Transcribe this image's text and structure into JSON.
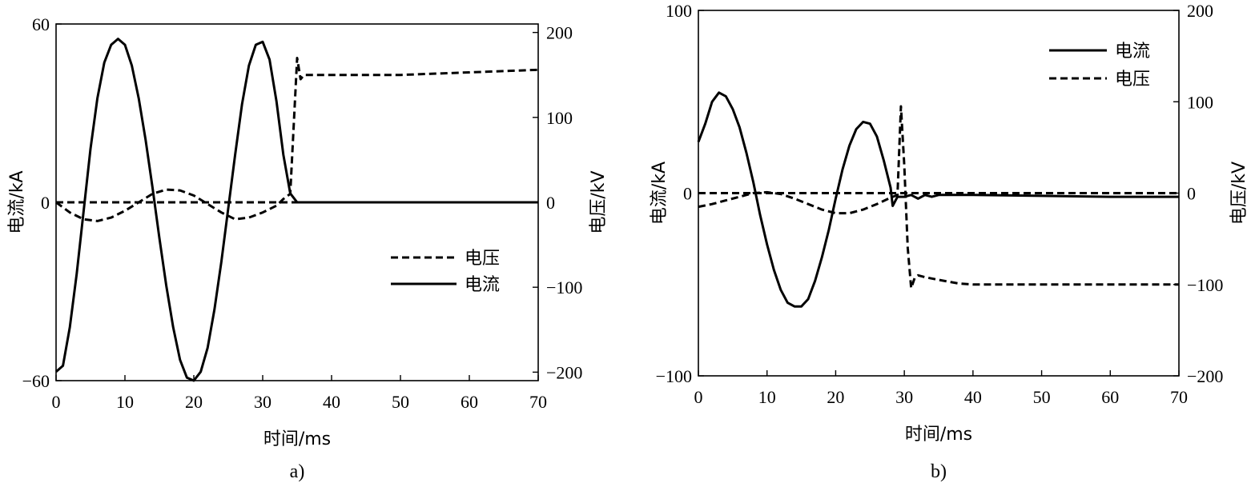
{
  "chart_data": [
    {
      "type": "line",
      "caption": "a)",
      "xlabel": "时间/ms",
      "ylabel_left": "电流/kA",
      "ylabel_right": "电压/kV",
      "xlim": [
        0,
        70
      ],
      "ylim_left": [
        -60,
        60
      ],
      "ylim_right": [
        -210,
        210
      ],
      "xticks": [
        0,
        10,
        20,
        30,
        40,
        50,
        60,
        70
      ],
      "yticks_left": [
        -60,
        0,
        60
      ],
      "yticks_right": [
        -200,
        -100,
        0,
        100,
        200
      ],
      "legend": {
        "placement": "center-right",
        "entries": [
          "电压",
          "电流"
        ]
      },
      "series": [
        {
          "name": "电流",
          "style": "solid",
          "axis": "left",
          "points": [
            [
              0,
              -57
            ],
            [
              1,
              -55
            ],
            [
              2,
              -42
            ],
            [
              3,
              -24
            ],
            [
              4,
              -3
            ],
            [
              5,
              18
            ],
            [
              6,
              35
            ],
            [
              7,
              47
            ],
            [
              8,
              53
            ],
            [
              9,
              55
            ],
            [
              10,
              53
            ],
            [
              11,
              46
            ],
            [
              12,
              35
            ],
            [
              13,
              21
            ],
            [
              14,
              5
            ],
            [
              15,
              -12
            ],
            [
              16,
              -28
            ],
            [
              17,
              -42
            ],
            [
              18,
              -53
            ],
            [
              19,
              -59
            ],
            [
              20,
              -60
            ],
            [
              21,
              -57
            ],
            [
              22,
              -49
            ],
            [
              23,
              -36
            ],
            [
              24,
              -20
            ],
            [
              25,
              -2
            ],
            [
              26,
              16
            ],
            [
              27,
              33
            ],
            [
              28,
              46
            ],
            [
              29,
              53
            ],
            [
              30,
              54
            ],
            [
              31,
              48
            ],
            [
              32,
              34
            ],
            [
              33,
              16
            ],
            [
              34,
              3
            ],
            [
              35,
              0
            ],
            [
              40,
              0
            ],
            [
              50,
              0
            ],
            [
              60,
              0
            ],
            [
              70,
              0
            ]
          ]
        },
        {
          "name": "电压",
          "style": "dashed",
          "axis": "right",
          "points": [
            [
              0,
              0
            ],
            [
              2,
              -12
            ],
            [
              4,
              -20
            ],
            [
              6,
              -22
            ],
            [
              8,
              -18
            ],
            [
              10,
              -10
            ],
            [
              12,
              0
            ],
            [
              14,
              10
            ],
            [
              16,
              15
            ],
            [
              18,
              14
            ],
            [
              20,
              8
            ],
            [
              22,
              -2
            ],
            [
              24,
              -12
            ],
            [
              26,
              -20
            ],
            [
              28,
              -18
            ],
            [
              30,
              -12
            ],
            [
              32,
              -4
            ],
            [
              33,
              4
            ],
            [
              34,
              10
            ],
            [
              35,
              170
            ],
            [
              35.5,
              145
            ],
            [
              36,
              150
            ],
            [
              40,
              150
            ],
            [
              50,
              150
            ],
            [
              60,
              153
            ],
            [
              70,
              156
            ]
          ]
        },
        {
          "name": "",
          "style": "dashed",
          "axis": "right",
          "points": [
            [
              0,
              0
            ],
            [
              35,
              0
            ]
          ]
        }
      ]
    },
    {
      "type": "line",
      "caption": "b)",
      "xlabel": "时间/ms",
      "ylabel_left": "电流/kA",
      "ylabel_right": "电压/kV",
      "xlim": [
        0,
        70
      ],
      "ylim_left": [
        -100,
        100
      ],
      "ylim_right": [
        -200,
        200
      ],
      "xticks": [
        0,
        10,
        20,
        30,
        40,
        50,
        60,
        70
      ],
      "yticks_left": [
        -100,
        0,
        100
      ],
      "yticks_right": [
        -200,
        -100,
        0,
        100,
        200
      ],
      "legend": {
        "placement": "top-right",
        "entries": [
          "电流",
          "电压"
        ]
      },
      "series": [
        {
          "name": "电流",
          "style": "solid",
          "axis": "left",
          "points": [
            [
              0,
              28
            ],
            [
              1,
              38
            ],
            [
              2,
              50
            ],
            [
              3,
              55
            ],
            [
              4,
              53
            ],
            [
              5,
              46
            ],
            [
              6,
              36
            ],
            [
              7,
              22
            ],
            [
              8,
              6
            ],
            [
              9,
              -12
            ],
            [
              10,
              -28
            ],
            [
              11,
              -42
            ],
            [
              12,
              -53
            ],
            [
              13,
              -60
            ],
            [
              14,
              -62
            ],
            [
              15,
              -62
            ],
            [
              16,
              -58
            ],
            [
              17,
              -48
            ],
            [
              18,
              -35
            ],
            [
              19,
              -20
            ],
            [
              20,
              -3
            ],
            [
              21,
              13
            ],
            [
              22,
              26
            ],
            [
              23,
              35
            ],
            [
              24,
              39
            ],
            [
              25,
              38
            ],
            [
              26,
              31
            ],
            [
              27,
              18
            ],
            [
              28,
              3
            ],
            [
              28.3,
              -7
            ],
            [
              29,
              -2
            ],
            [
              30,
              -2
            ],
            [
              31,
              -1
            ],
            [
              32,
              -3
            ],
            [
              33,
              -1
            ],
            [
              34,
              -2
            ],
            [
              35,
              -1
            ],
            [
              40,
              -1
            ],
            [
              50,
              -1.5
            ],
            [
              60,
              -2
            ],
            [
              70,
              -2
            ]
          ]
        },
        {
          "name": "电压",
          "style": "dashed",
          "axis": "right",
          "points": [
            [
              0,
              -15
            ],
            [
              2,
              -12
            ],
            [
              4,
              -8
            ],
            [
              6,
              -4
            ],
            [
              8,
              0
            ],
            [
              10,
              1
            ],
            [
              12,
              -1
            ],
            [
              14,
              -6
            ],
            [
              16,
              -12
            ],
            [
              18,
              -18
            ],
            [
              20,
              -22
            ],
            [
              22,
              -22
            ],
            [
              24,
              -18
            ],
            [
              26,
              -12
            ],
            [
              28,
              -5
            ],
            [
              29,
              -2
            ],
            [
              29.5,
              95
            ],
            [
              30,
              30
            ],
            [
              30.5,
              -60
            ],
            [
              31,
              -104
            ],
            [
              31.5,
              -93
            ],
            [
              32,
              -90
            ],
            [
              33,
              -92
            ],
            [
              35,
              -95
            ],
            [
              38,
              -99
            ],
            [
              40,
              -100
            ],
            [
              50,
              -100
            ],
            [
              60,
              -100
            ],
            [
              70,
              -100
            ]
          ]
        },
        {
          "name": "",
          "style": "dashed",
          "axis": "right",
          "points": [
            [
              0,
              0
            ],
            [
              70,
              0
            ]
          ]
        }
      ]
    }
  ]
}
